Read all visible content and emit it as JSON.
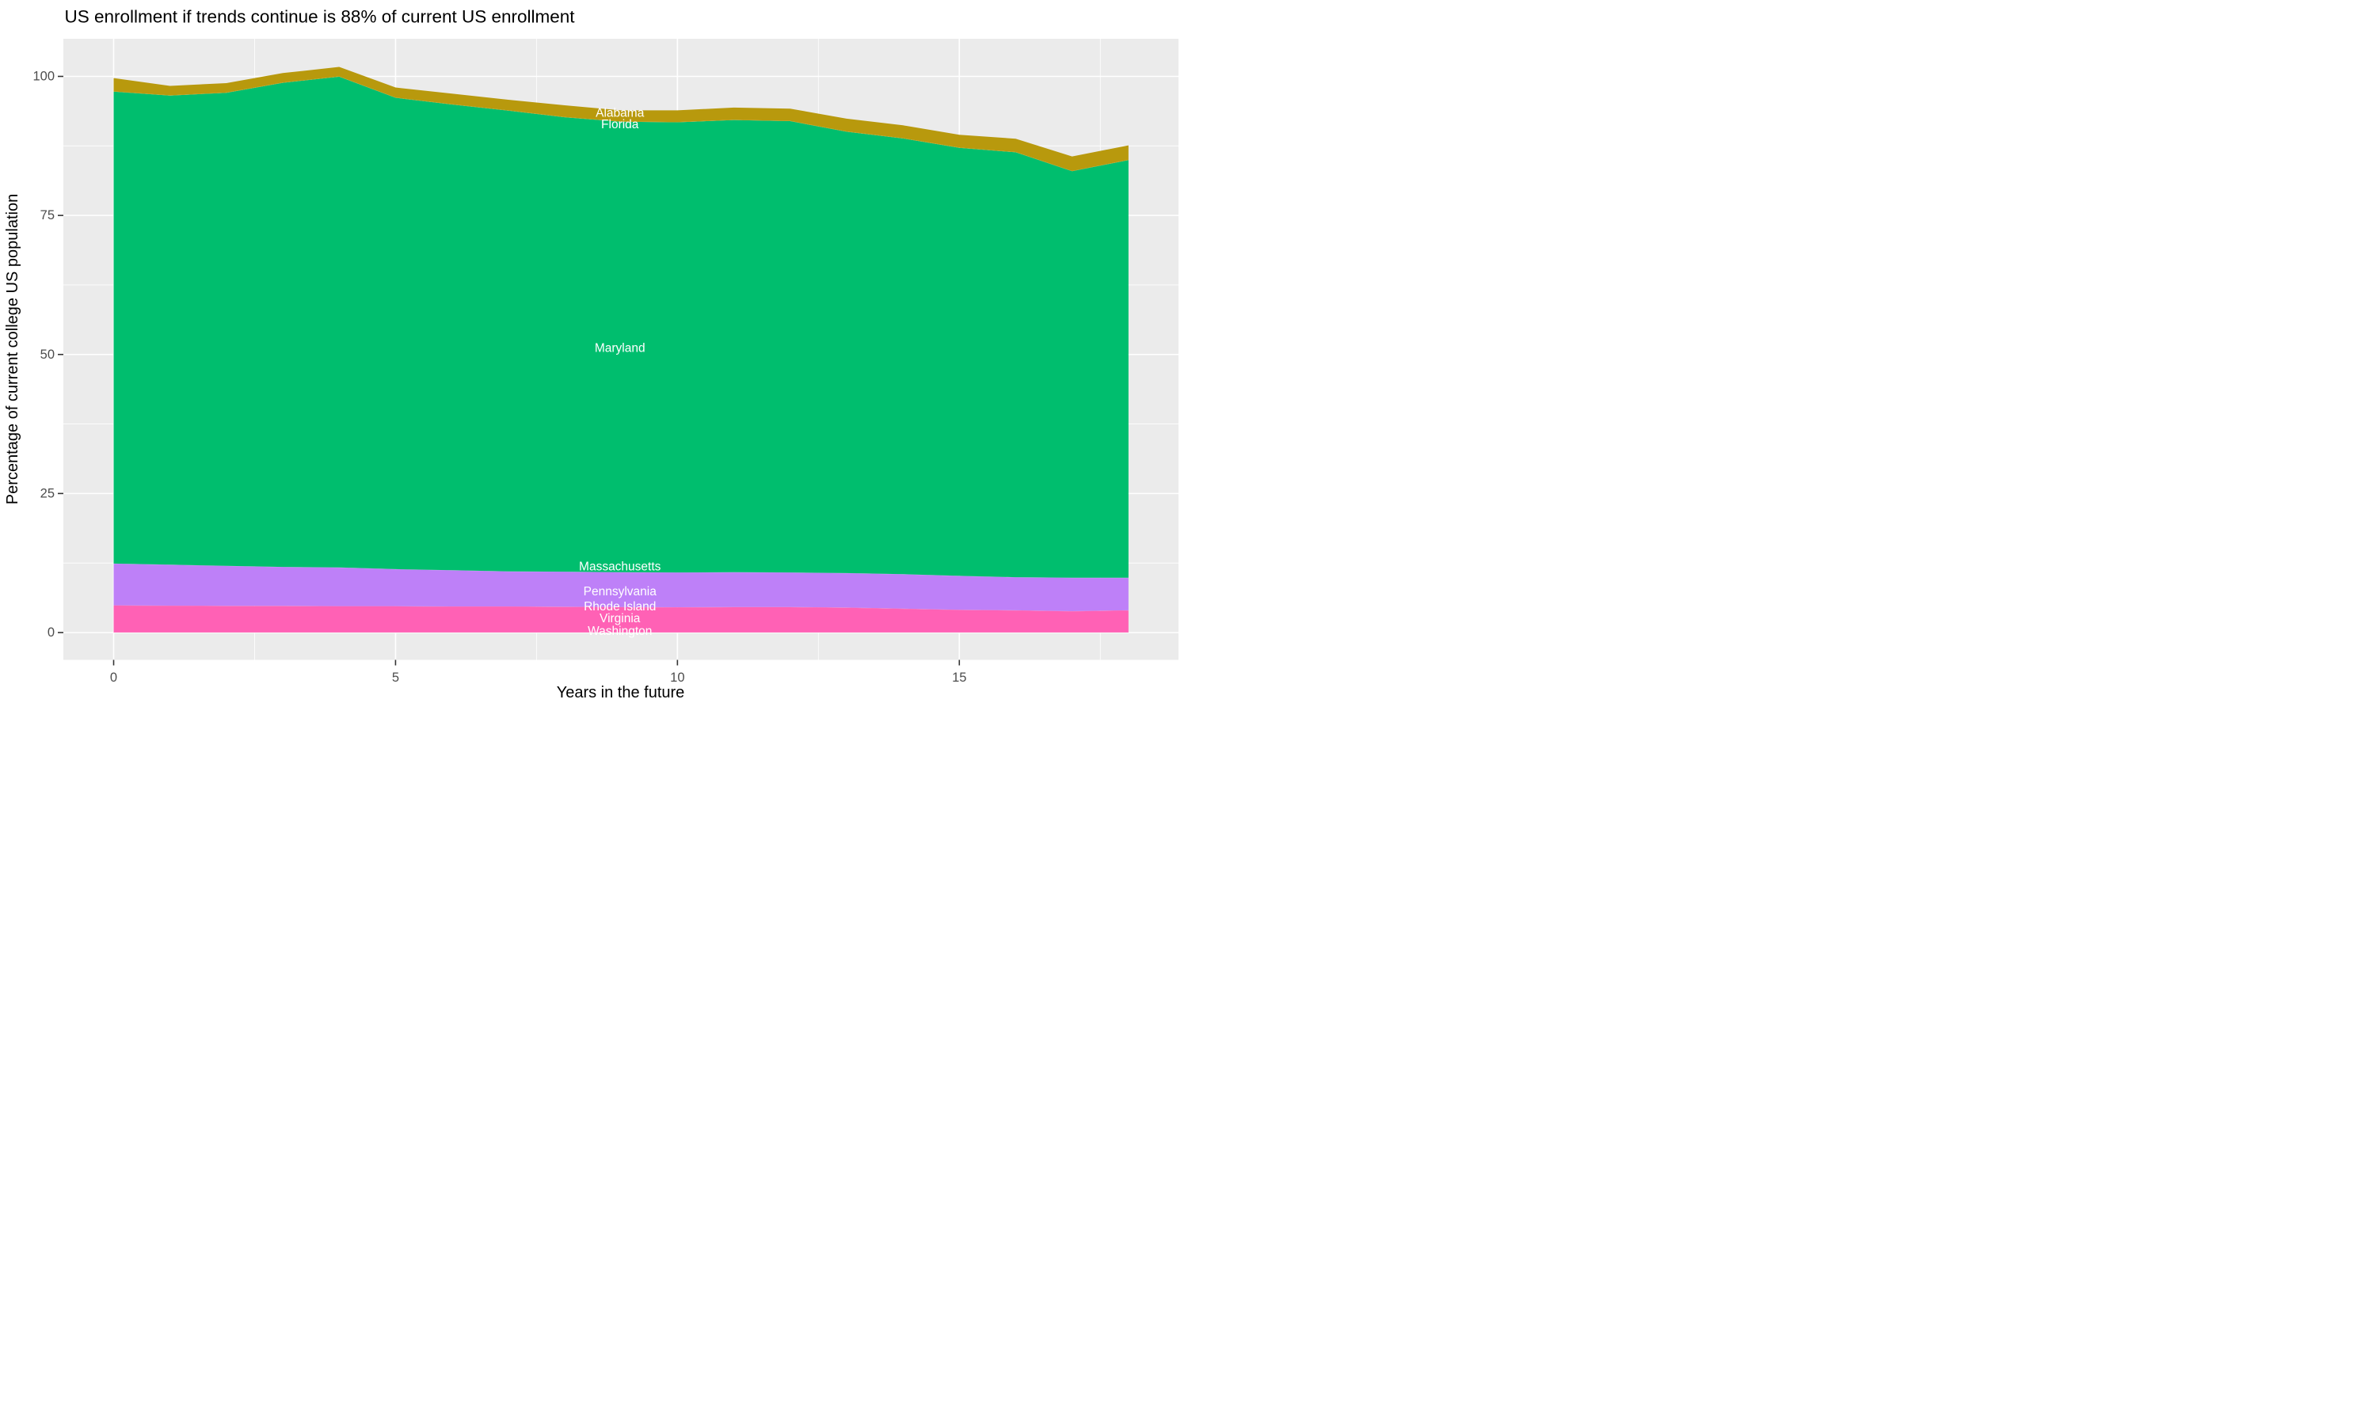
{
  "title": "US enrollment if trends continue is 88% of current US enrollment",
  "chart_data": {
    "type": "area",
    "stacked": true,
    "title": "US enrollment if trends continue is 88% of current US enrollment",
    "xlabel": "Years in the future",
    "ylabel": "Percentage of current college US population",
    "x": [
      0,
      1,
      2,
      3,
      4,
      5,
      6,
      7,
      8,
      9,
      10,
      11,
      12,
      13,
      14,
      15,
      16,
      17,
      18
    ],
    "x_ticks": [
      0,
      5,
      10,
      15
    ],
    "x_minor_ticks": [
      2.5,
      7.5,
      12.5,
      17.5
    ],
    "y_ticks": [
      0,
      25,
      50,
      75,
      100
    ],
    "y_minor_ticks": [
      12.5,
      37.5,
      62.5,
      87.5
    ],
    "xlim": [
      0,
      18
    ],
    "ylim": [
      0,
      101.7
    ],
    "grid": "white major and minor gridlines on grey panel",
    "legend_position": "none",
    "panel_bg": "#EBEBEB",
    "grid_color": "#FFFFFF",
    "tick_mark_color": "#333333",
    "tick_label_color": "#4D4D4D",
    "axis_title_color": "#000000",
    "title_color": "#000000",
    "area_label_color": "#FFFFFF",
    "series_note": "listed in stacking order from top band to bottom band; totals at year 18 equal ~87.6 (≈88% of current enrollment); Florida, Massachusetts, Rhode Island and Washington bands are near-zero thickness (labels sit on band boundaries)",
    "series": [
      {
        "name": "Alabama",
        "color": "#B8990D",
        "values": [
          2.4,
          1.7,
          1.7,
          1.7,
          1.7,
          1.8,
          1.9,
          1.9,
          2.1,
          2.0,
          2.1,
          2.2,
          2.2,
          2.3,
          2.3,
          2.3,
          2.4,
          2.6,
          2.6
        ]
      },
      {
        "name": "Florida",
        "color": "#B8990D",
        "values": [
          0.05,
          0.05,
          0.05,
          0.05,
          0.05,
          0.05,
          0.05,
          0.05,
          0.05,
          0.05,
          0.05,
          0.05,
          0.05,
          0.05,
          0.05,
          0.05,
          0.05,
          0.05,
          0.05
        ]
      },
      {
        "name": "Maryland",
        "color": "#00BE6E",
        "values": [
          84.85,
          84.35,
          85.05,
          87.05,
          88.25,
          84.75,
          83.75,
          82.85,
          81.7,
          81.0,
          80.95,
          81.3,
          81.15,
          79.35,
          78.35,
          76.95,
          76.4,
          73.1,
          75.1
        ]
      },
      {
        "name": "Massachusetts",
        "color": "#BE80F8",
        "values": [
          0.05,
          0.05,
          0.05,
          0.05,
          0.05,
          0.05,
          0.05,
          0.05,
          0.05,
          0.05,
          0.05,
          0.05,
          0.05,
          0.05,
          0.05,
          0.05,
          0.05,
          0.05,
          0.05
        ]
      },
      {
        "name": "Pennsylvania",
        "color": "#BE80F8",
        "values": [
          7.45,
          7.3,
          7.15,
          6.95,
          6.9,
          6.6,
          6.45,
          6.25,
          6.25,
          6.2,
          6.2,
          6.2,
          6.15,
          6.15,
          6.15,
          6.05,
          5.9,
          5.95,
          5.8
        ]
      },
      {
        "name": "Rhode Island",
        "color": "#FF61B5",
        "values": [
          0.05,
          0.05,
          0.05,
          0.05,
          0.05,
          0.05,
          0.05,
          0.05,
          0.05,
          0.05,
          0.05,
          0.05,
          0.05,
          0.05,
          0.05,
          0.05,
          0.05,
          0.05,
          0.05
        ]
      },
      {
        "name": "Virginia",
        "color": "#FF61B5",
        "values": [
          4.8,
          4.75,
          4.7,
          4.7,
          4.65,
          4.65,
          4.6,
          4.6,
          4.55,
          4.5,
          4.45,
          4.5,
          4.5,
          4.4,
          4.2,
          4.0,
          3.9,
          3.75,
          3.9
        ]
      },
      {
        "name": "Washington",
        "color": "#FF61B5",
        "values": [
          0.05,
          0.05,
          0.05,
          0.05,
          0.05,
          0.05,
          0.05,
          0.05,
          0.05,
          0.05,
          0.05,
          0.05,
          0.05,
          0.05,
          0.05,
          0.05,
          0.05,
          0.05,
          0.05
        ]
      }
    ],
    "totals_by_year": [
      99.7,
      98.3,
      98.8,
      100.6,
      101.7,
      98.0,
      96.9,
      95.8,
      94.8,
      93.9,
      93.9,
      94.4,
      94.2,
      92.4,
      91.2,
      89.5,
      88.8,
      85.6,
      87.6
    ],
    "annotations": [
      {
        "text": "Alabama",
        "x": 8.98,
        "y": 93.4
      },
      {
        "text": "Florida",
        "x": 8.98,
        "y": 91.3
      },
      {
        "text": "Maryland",
        "x": 8.98,
        "y": 51.1
      },
      {
        "text": "Massachusetts",
        "x": 8.98,
        "y": 11.8
      },
      {
        "text": "Pennsylvania",
        "x": 8.98,
        "y": 7.3
      },
      {
        "text": "Rhode Island",
        "x": 8.98,
        "y": 4.6
      },
      {
        "text": "Virginia",
        "x": 8.98,
        "y": 2.5
      },
      {
        "text": "Washington",
        "x": 8.98,
        "y": 0.2
      }
    ]
  }
}
